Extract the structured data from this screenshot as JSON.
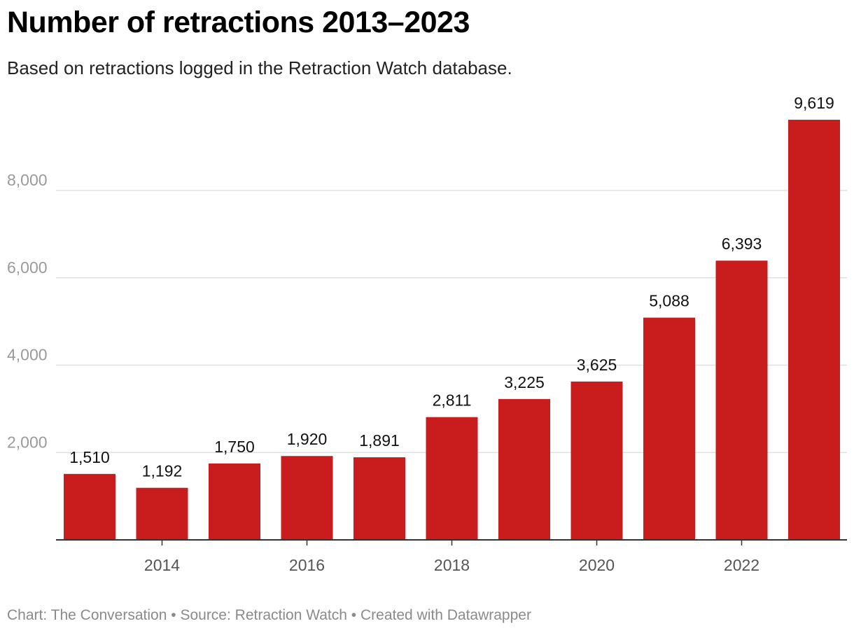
{
  "title": "Number of retractions 2013–2023",
  "subtitle": "Based on retractions logged in the Retraction Watch database.",
  "footer": {
    "credit": "Chart: The Conversation",
    "source": "Source: Retraction Watch",
    "created_with": "Created with Datawrapper",
    "separator": "•"
  },
  "colors": {
    "bar": "#c91d1d",
    "grid": "#e0e0e0",
    "axis": "#333333"
  },
  "chart_data": {
    "type": "bar",
    "title": "Number of retractions 2013–2023",
    "subtitle": "Based on retractions logged in the Retraction Watch database.",
    "xlabel": "",
    "ylabel": "",
    "categories": [
      "2013",
      "2014",
      "2015",
      "2016",
      "2017",
      "2018",
      "2019",
      "2020",
      "2021",
      "2022",
      "2023"
    ],
    "values": [
      1510,
      1192,
      1750,
      1920,
      1891,
      2811,
      3225,
      3625,
      5088,
      6393,
      9619
    ],
    "value_labels": [
      "1,510",
      "1,192",
      "1,750",
      "1,920",
      "1,891",
      "2,811",
      "3,225",
      "3,625",
      "5,088",
      "6,393",
      "9,619"
    ],
    "x_tick_labels": [
      "2014",
      "2016",
      "2018",
      "2020",
      "2022"
    ],
    "y_ticks": [
      2000,
      4000,
      6000,
      8000
    ],
    "y_tick_labels": [
      "2,000",
      "4,000",
      "6,000",
      "8,000"
    ],
    "ylim": [
      0,
      10000
    ],
    "grid": true,
    "legend": false
  }
}
